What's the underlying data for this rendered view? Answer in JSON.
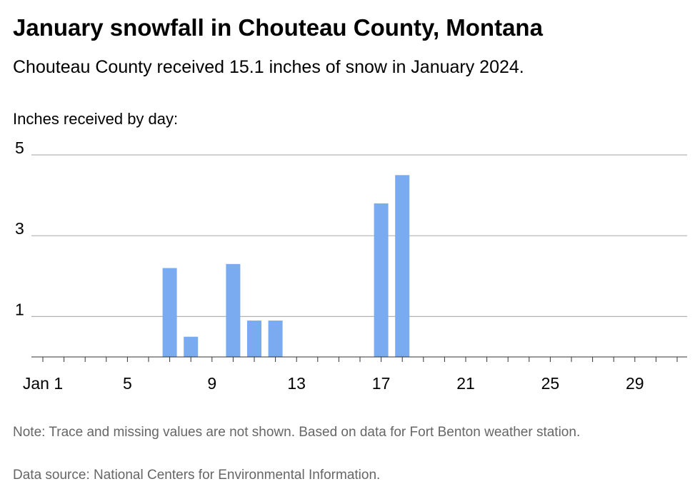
{
  "title": "January snowfall in Chouteau County, Montana",
  "subtitle": "Chouteau County received 15.1 inches of snow in January 2024.",
  "ylabel": "Inches received by day:",
  "note": "Note: Trace and missing values are not shown. Based on data for Fort Benton weather station.",
  "source": "Data source: National Centers for Environmental Information.",
  "colors": {
    "bar": "#7aaaf0",
    "grid": "#b3b3b3",
    "baseline": "#333333"
  },
  "chart_data": {
    "type": "bar",
    "title": "January snowfall in Chouteau County, Montana",
    "xlabel": "",
    "ylabel": "Inches received by day:",
    "ylim": [
      0,
      5
    ],
    "xlim": [
      1,
      31
    ],
    "yticks": [
      1,
      3,
      5
    ],
    "xticks": [
      {
        "value": 1,
        "label": "Jan 1"
      },
      {
        "value": 5,
        "label": "5"
      },
      {
        "value": 9,
        "label": "9"
      },
      {
        "value": 13,
        "label": "13"
      },
      {
        "value": 17,
        "label": "17"
      },
      {
        "value": 21,
        "label": "21"
      },
      {
        "value": 25,
        "label": "25"
      },
      {
        "value": 29,
        "label": "29"
      }
    ],
    "x": [
      7,
      8,
      10,
      11,
      12,
      17,
      18
    ],
    "values": [
      2.2,
      0.5,
      2.3,
      0.9,
      0.9,
      3.8,
      4.5
    ],
    "grid": true
  }
}
